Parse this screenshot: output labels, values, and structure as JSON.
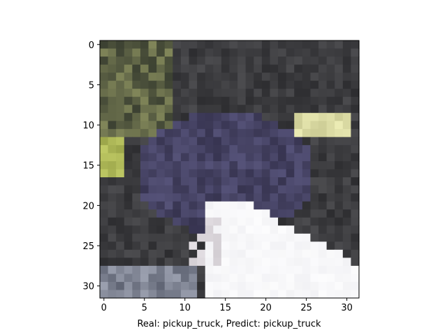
{
  "figure": {
    "xlabel": "Real: pickup_truck, Predict: pickup_truck",
    "x_ticks": [
      "0",
      "5",
      "10",
      "15",
      "20",
      "25",
      "30"
    ],
    "y_ticks": [
      "0",
      "5",
      "10",
      "15",
      "20",
      "25",
      "30"
    ],
    "image_size": 32,
    "image_description_colors": {
      "dark_background": "#2b2a2e",
      "truck_body": "#3d3b52",
      "light_region": "#f2f2f4",
      "highlight_green": "#9aa068",
      "highlight_yellow": "#d8d69a"
    }
  }
}
